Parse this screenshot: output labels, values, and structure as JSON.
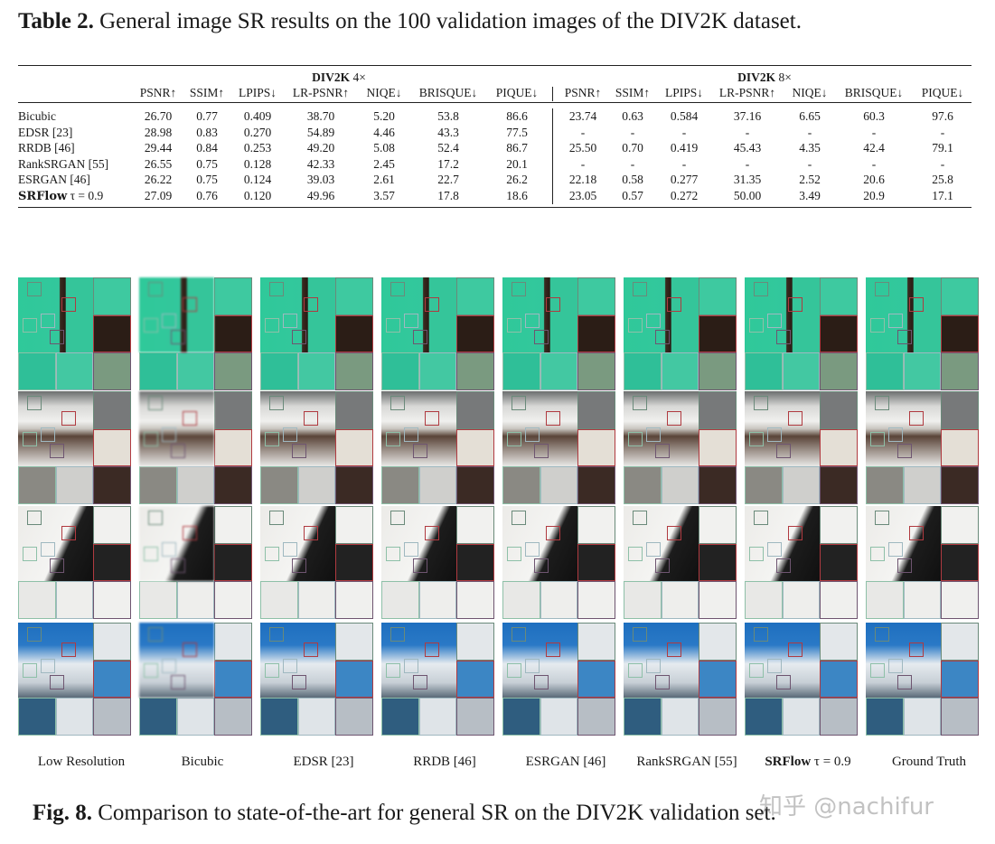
{
  "table": {
    "label": "Table 2.",
    "title": "General image SR results on the 100 validation images of the DIV2K dataset.",
    "groups": [
      {
        "name": "DIV2K",
        "scale": "4×"
      },
      {
        "name": "DIV2K",
        "scale": "8×"
      }
    ],
    "metrics": [
      "PSNR↑",
      "SSIM↑",
      "LPIPS↓",
      "LR-PSNR↑",
      "NIQE↓",
      "BRISQUE↓",
      "PIQUE↓"
    ],
    "rows": [
      {
        "method": "Bicubic",
        "bold": false,
        "x4": [
          "26.70",
          "0.77",
          "0.409",
          "38.70",
          "5.20",
          "53.8",
          "86.6"
        ],
        "x8": [
          "23.74",
          "0.63",
          "0.584",
          "37.16",
          "6.65",
          "60.3",
          "97.6"
        ]
      },
      {
        "method": "EDSR [23]",
        "bold": false,
        "x4": [
          "28.98",
          "0.83",
          "0.270",
          "54.89",
          "4.46",
          "43.3",
          "77.5"
        ],
        "x8": [
          "-",
          "-",
          "-",
          "-",
          "-",
          "-",
          "-"
        ]
      },
      {
        "method": "RRDB [46]",
        "bold": false,
        "x4": [
          "29.44",
          "0.84",
          "0.253",
          "49.20",
          "5.08",
          "52.4",
          "86.7"
        ],
        "x8": [
          "25.50",
          "0.70",
          "0.419",
          "45.43",
          "4.35",
          "42.4",
          "79.1"
        ]
      },
      {
        "method": "RankSRGAN [55]",
        "bold": false,
        "x4": [
          "26.55",
          "0.75",
          "0.128",
          "42.33",
          "2.45",
          "17.2",
          "20.1"
        ],
        "x8": [
          "-",
          "-",
          "-",
          "-",
          "-",
          "-",
          "-"
        ]
      },
      {
        "method": "ESRGAN [46]",
        "bold": false,
        "x4": [
          "26.22",
          "0.75",
          "0.124",
          "39.03",
          "2.61",
          "22.7",
          "26.2"
        ],
        "x8": [
          "22.18",
          "0.58",
          "0.277",
          "31.35",
          "2.52",
          "20.6",
          "25.8"
        ]
      },
      {
        "method": "SRFlow",
        "suffix": "τ = 0.9",
        "bold": true,
        "x4": [
          "27.09",
          "0.76",
          "0.120",
          "49.96",
          "3.57",
          "17.8",
          "18.6"
        ],
        "x8": [
          "23.05",
          "0.57",
          "0.272",
          "50.00",
          "3.49",
          "20.9",
          "17.1"
        ]
      }
    ]
  },
  "figure": {
    "columns": [
      {
        "label": "Low Resolution"
      },
      {
        "label": "Bicubic"
      },
      {
        "label": "EDSR [23]"
      },
      {
        "label": "RRDB [46]"
      },
      {
        "label": "ESRGAN [46]"
      },
      {
        "label": "RankSRGAN [55]"
      },
      {
        "label": "SRFlow",
        "suffix": "τ = 0.9",
        "bold": true
      },
      {
        "label": "Ground Truth"
      }
    ],
    "scenes": [
      "tree-over-water",
      "building-columns",
      "animal-fur",
      "coastal-town"
    ],
    "label": "Fig. 8.",
    "caption": "Comparison to state-of-the-art for general SR on the DIV2K validation set.",
    "watermark": "知乎 @nachifur"
  }
}
